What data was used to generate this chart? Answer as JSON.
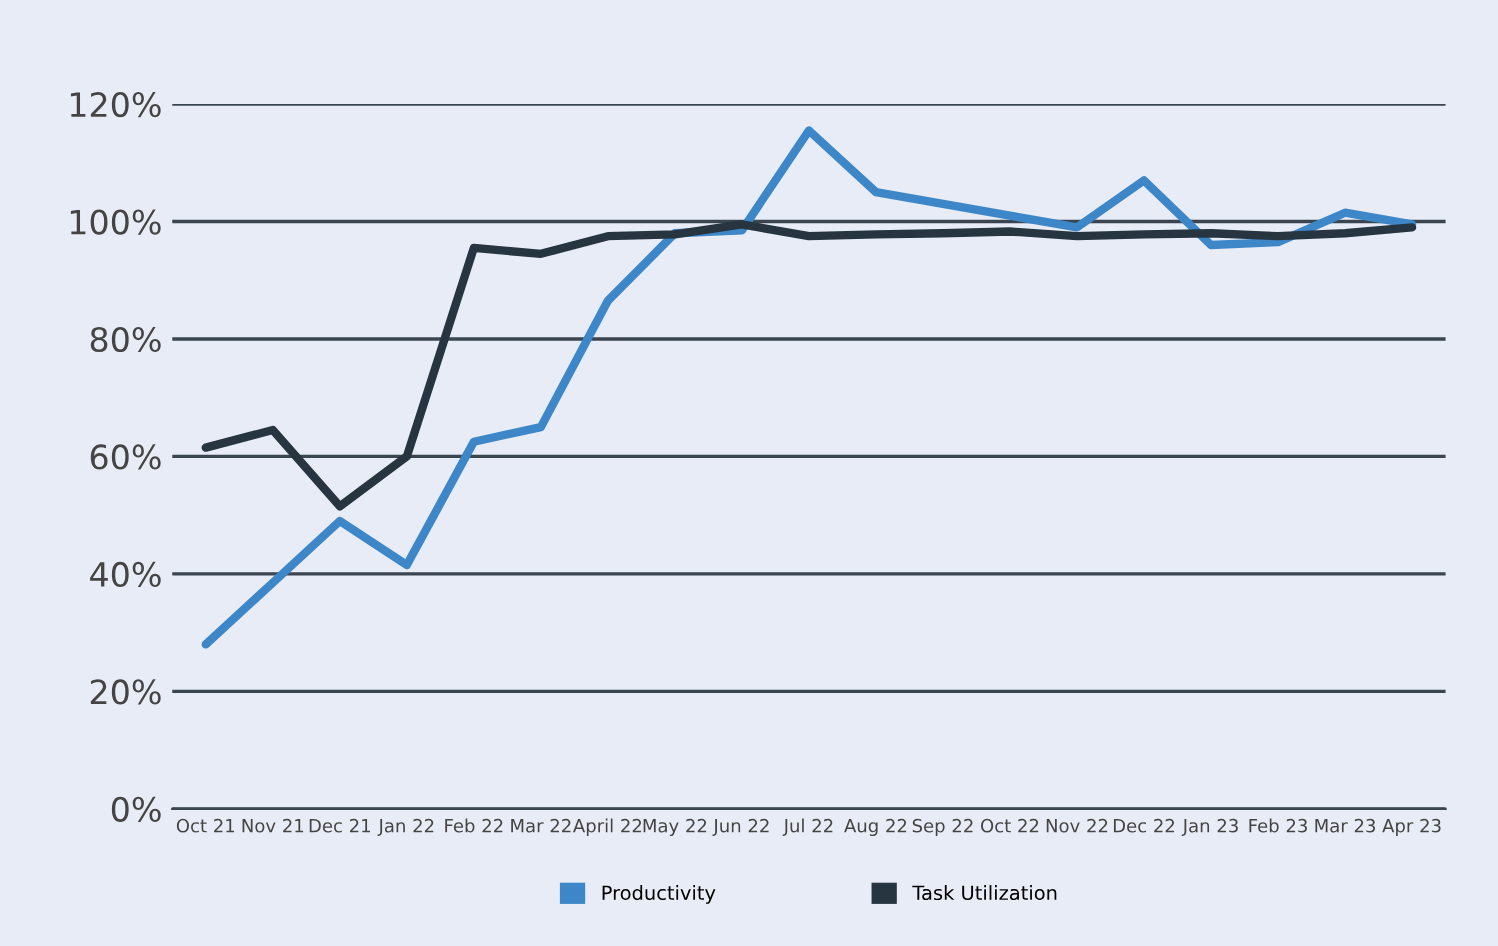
{
  "chart_data": {
    "type": "line",
    "categories": [
      "Oct 21",
      "Nov 21",
      "Dec 21",
      "Jan 22",
      "Feb 22",
      "Mar 22",
      "April 22",
      "May 22",
      "Jun 22",
      "Jul 22",
      "Aug 22",
      "Sep 22",
      "Oct 22",
      "Nov 22",
      "Dec 22",
      "Jan 23",
      "Feb 23",
      "Mar 23",
      "Apr 23"
    ],
    "series": [
      {
        "name": "Productivity",
        "color": "#3d87c8",
        "values": [
          28,
          38.5,
          49,
          41.5,
          62.5,
          65,
          86.5,
          98,
          98.5,
          115.5,
          105,
          103,
          101,
          99,
          107,
          96,
          96.5,
          101.5,
          99.5
        ]
      },
      {
        "name": "Task Utilization",
        "color": "#263540",
        "values": [
          61.5,
          64.5,
          51.5,
          60,
          95.5,
          94.5,
          97.5,
          97.8,
          99.5,
          97.5,
          97.8,
          98,
          98.3,
          97.5,
          97.8,
          98,
          97.5,
          98,
          99
        ]
      }
    ],
    "ylim": [
      0,
      120
    ],
    "yticks": [
      {
        "value": 0,
        "label": "0%"
      },
      {
        "value": 20,
        "label": "20%"
      },
      {
        "value": 40,
        "label": "40%"
      },
      {
        "value": 60,
        "label": "60%"
      },
      {
        "value": 80,
        "label": "80%"
      },
      {
        "value": 100,
        "label": "100%"
      },
      {
        "value": 120,
        "label": "120%"
      }
    ],
    "grid": "y",
    "legend": "bottom",
    "marker": "none",
    "line_style": "solid"
  }
}
